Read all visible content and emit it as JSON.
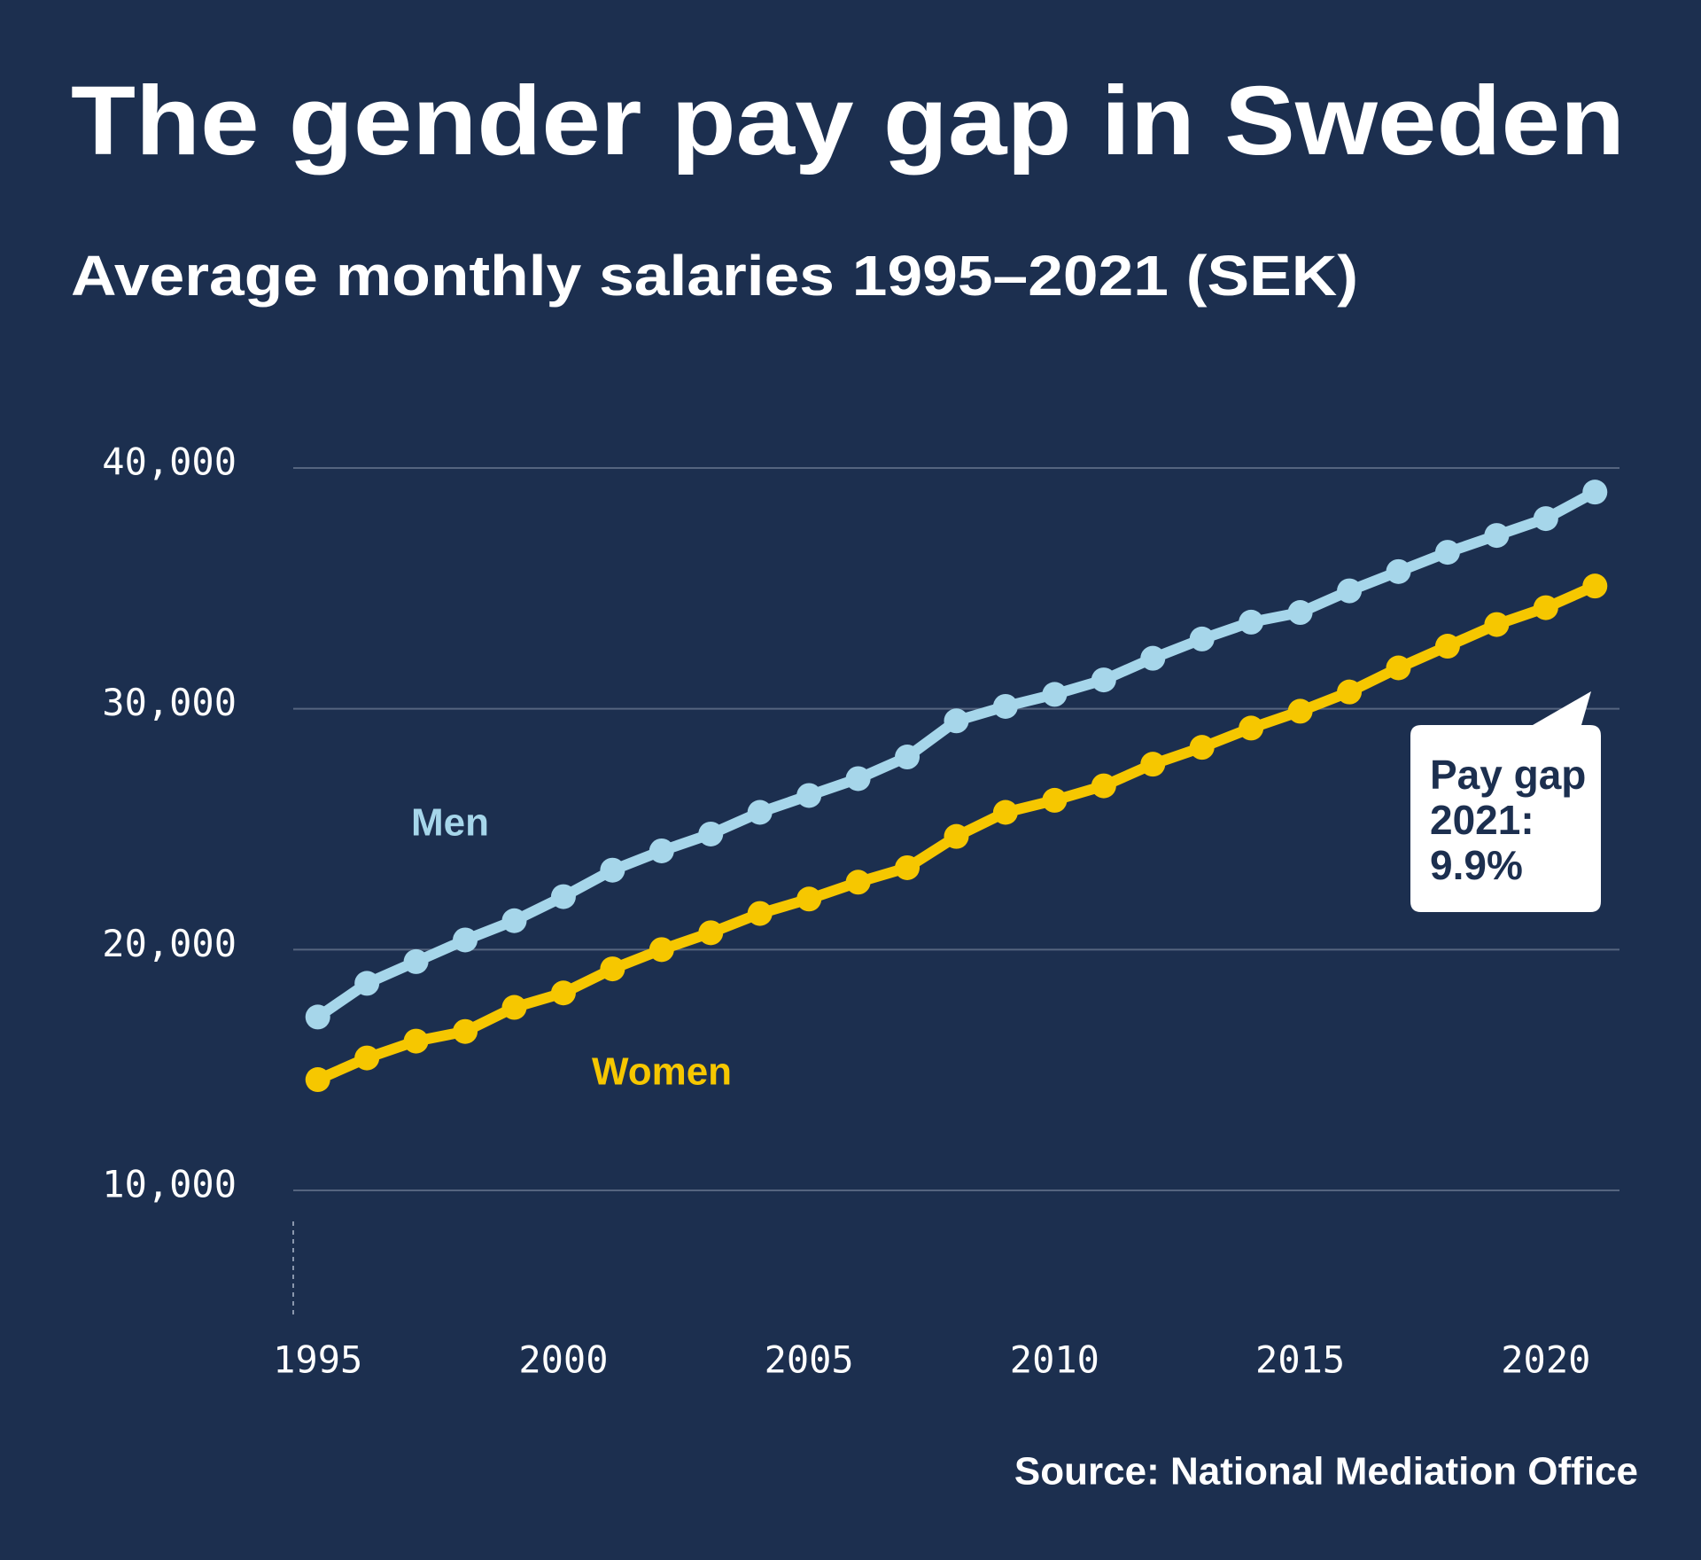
{
  "chart_data": {
    "type": "line",
    "title": "The gender pay gap in Sweden",
    "subtitle": "Average monthly salaries 1995–2021 (SEK)",
    "source": "Source: National Mediation Office",
    "x": [
      1995,
      1996,
      1997,
      1998,
      1999,
      2000,
      2001,
      2002,
      2003,
      2004,
      2005,
      2006,
      2007,
      2008,
      2009,
      2010,
      2011,
      2012,
      2013,
      2014,
      2015,
      2016,
      2017,
      2018,
      2019,
      2020,
      2021
    ],
    "series": [
      {
        "name": "Men",
        "color": "#a6d6ea",
        "values": [
          17200,
          18600,
          19500,
          20400,
          21200,
          22200,
          23300,
          24100,
          24800,
          25700,
          26400,
          27100,
          28000,
          29500,
          30100,
          30600,
          31200,
          32100,
          32900,
          33600,
          34000,
          34900,
          35700,
          36500,
          37200,
          37900,
          39000
        ]
      },
      {
        "name": "Women",
        "color": "#f6c700",
        "values": [
          14600,
          15500,
          16200,
          16600,
          17600,
          18200,
          19200,
          20000,
          20700,
          21500,
          22100,
          22800,
          23400,
          24700,
          25700,
          26200,
          26800,
          27700,
          28400,
          29200,
          29900,
          30700,
          31700,
          32600,
          33500,
          34200,
          35100
        ]
      }
    ],
    "annotation": [
      "Pay gap",
      "2021:",
      "9.9%"
    ],
    "xlim": [
      1994.5,
      2021.5
    ],
    "xticks": [
      1995,
      2000,
      2005,
      2010,
      2015,
      2020
    ],
    "ylim": [
      4700,
      40000
    ],
    "yticks": [
      {
        "value": 10000,
        "label": "10,000"
      },
      {
        "value": 20000,
        "label": "20,000"
      },
      {
        "value": 30000,
        "label": "30,000"
      },
      {
        "value": 40000,
        "label": "40,000"
      }
    ],
    "grid": true
  }
}
